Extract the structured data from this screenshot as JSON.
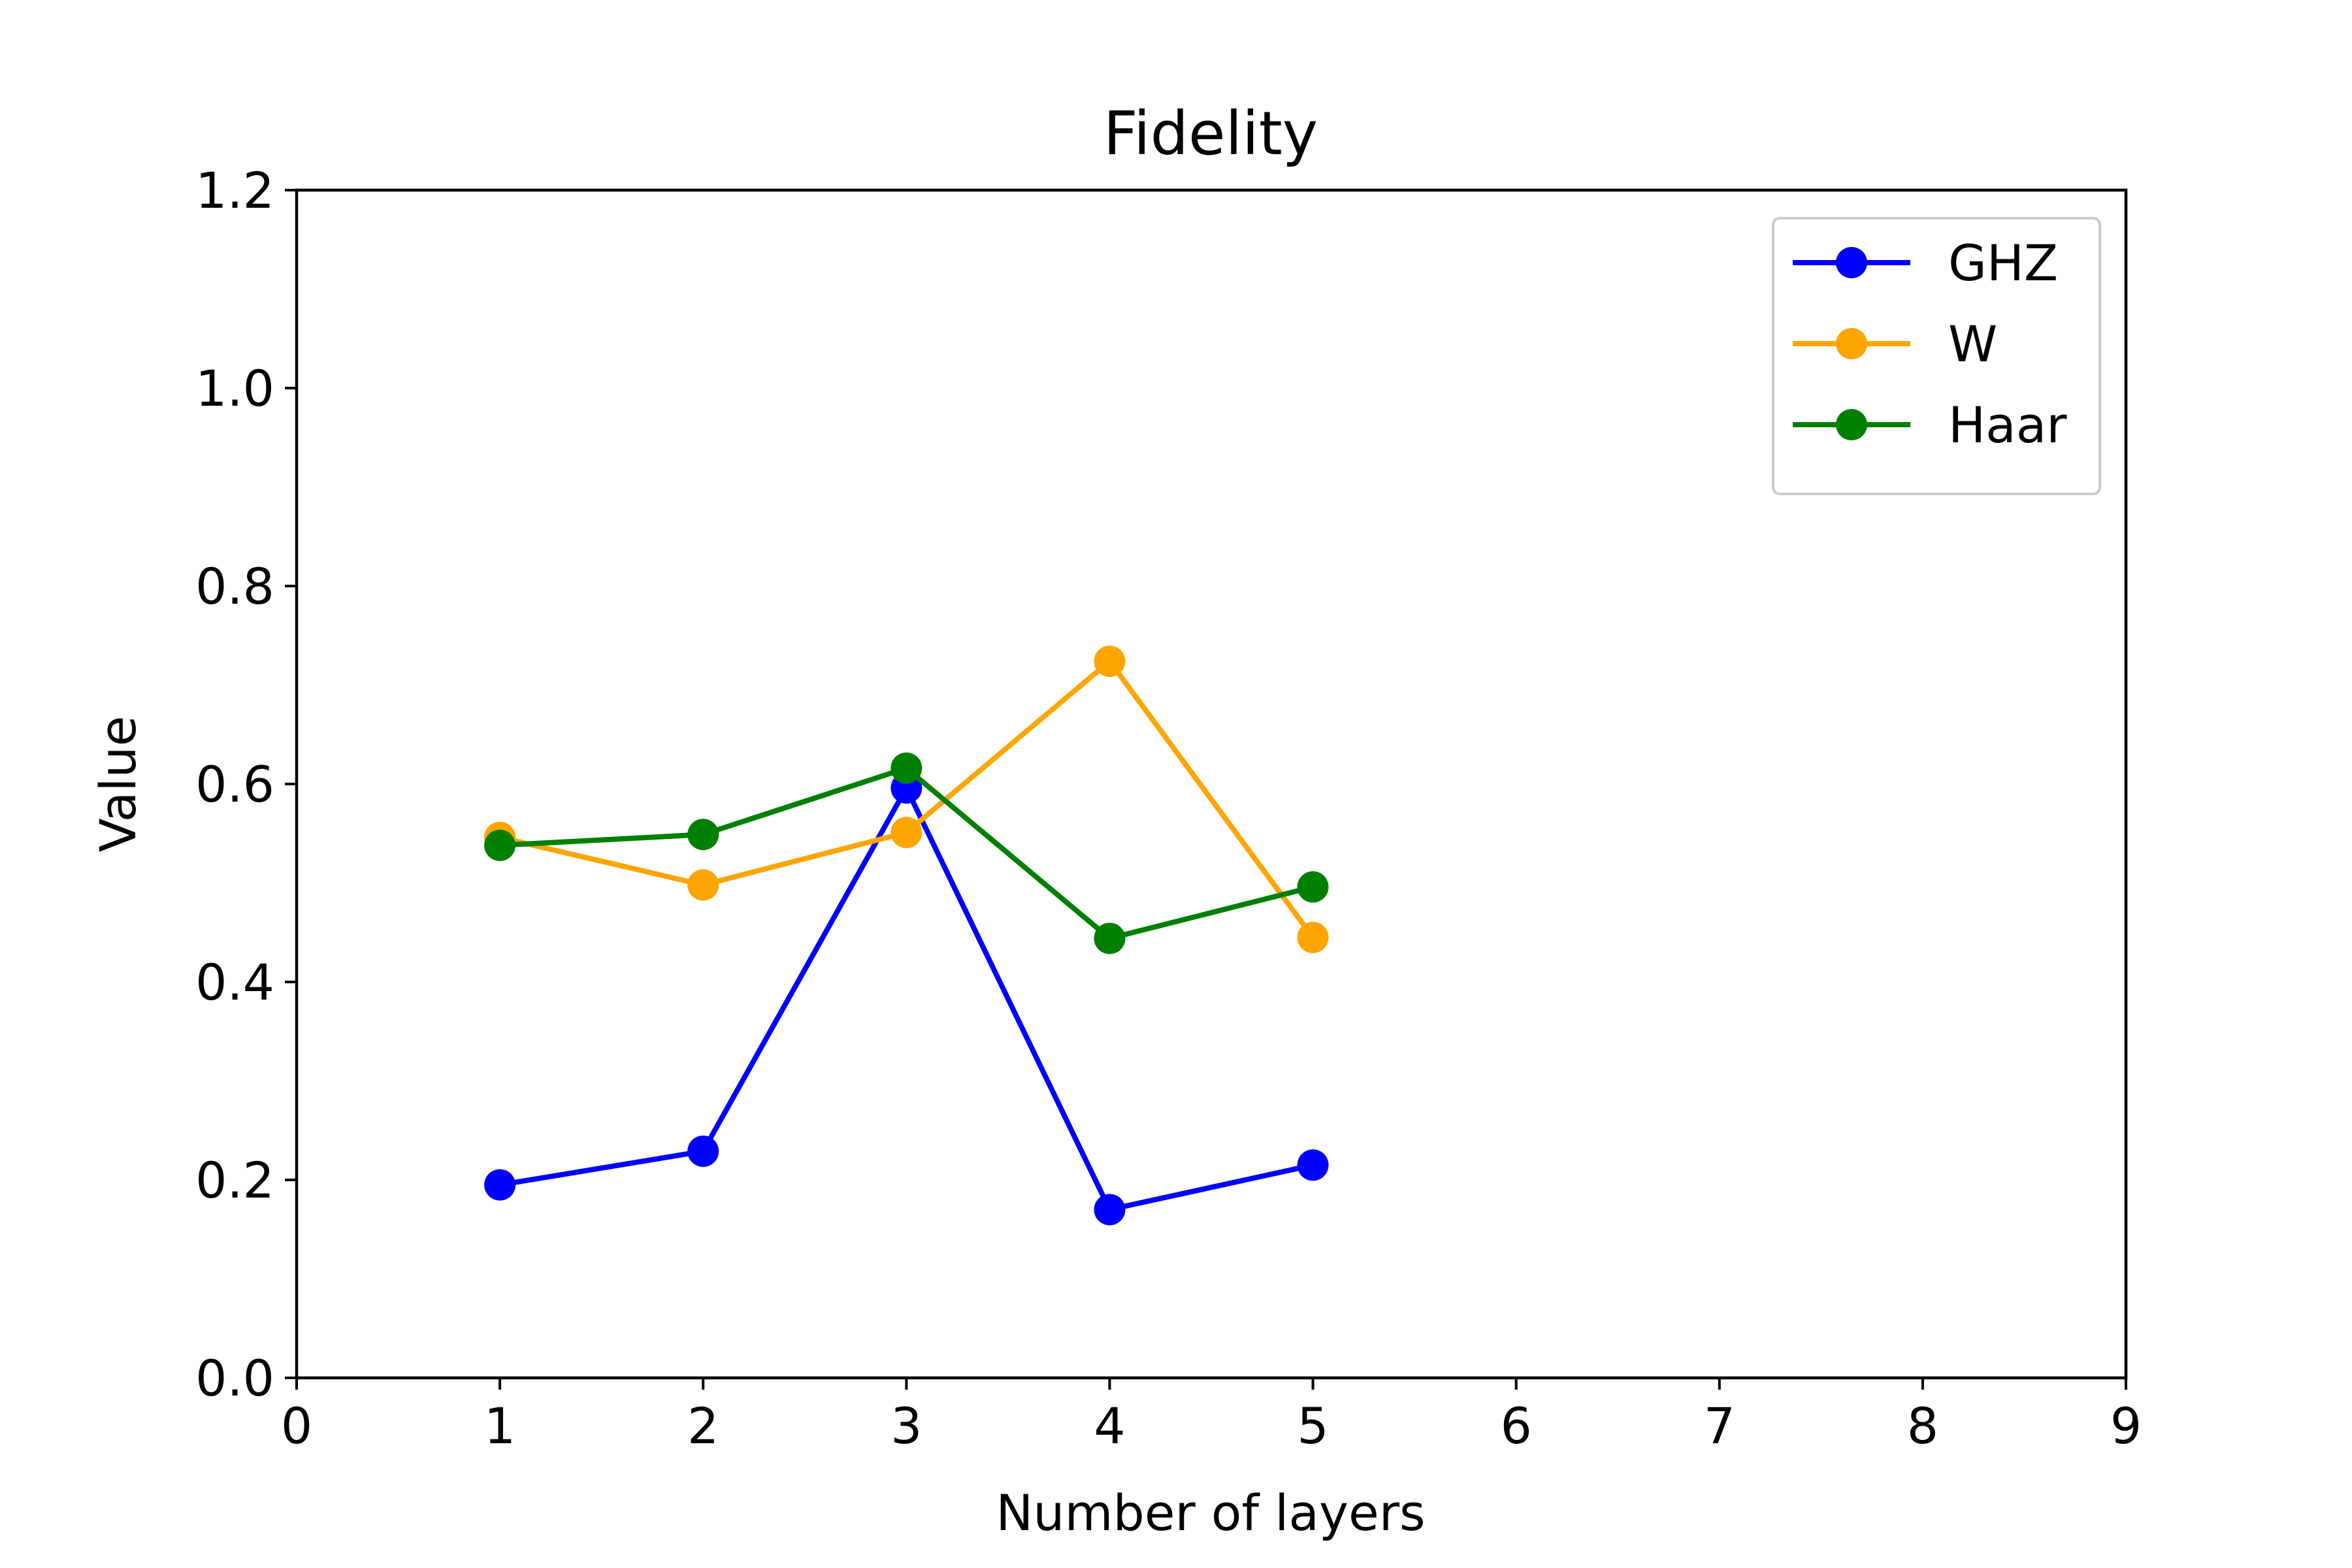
{
  "chart_data": {
    "type": "line",
    "title": "Fidelity",
    "xlabel": "Number of layers",
    "ylabel": "Value",
    "xlim": [
      0,
      9
    ],
    "ylim": [
      0.0,
      1.2
    ],
    "xticks": [
      "0",
      "1",
      "2",
      "3",
      "4",
      "5",
      "6",
      "7",
      "8",
      "9"
    ],
    "yticks": [
      "0.0",
      "0.2",
      "0.4",
      "0.6",
      "0.8",
      "1.0",
      "1.2"
    ],
    "grid": false,
    "legend_position": "top-right",
    "x": [
      1,
      2,
      3,
      4,
      5
    ],
    "series": [
      {
        "name": "GHZ",
        "color": "#0000ff",
        "values": [
          0.195,
          0.229,
          0.596,
          0.17,
          0.215
        ]
      },
      {
        "name": "W",
        "color": "#ffa500",
        "values": [
          0.546,
          0.498,
          0.551,
          0.724,
          0.445
        ]
      },
      {
        "name": "Haar",
        "color": "#008000",
        "values": [
          0.538,
          0.549,
          0.616,
          0.444,
          0.496
        ]
      }
    ]
  }
}
